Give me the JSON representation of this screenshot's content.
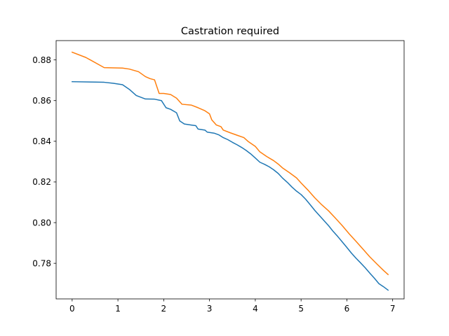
{
  "chart_data": {
    "type": "line",
    "title": "Castration required",
    "xlabel": "",
    "ylabel": "",
    "xlim": [
      -0.35,
      7.25
    ],
    "ylim": [
      0.7625,
      0.8895
    ],
    "xticks": [
      0,
      1,
      2,
      3,
      4,
      5,
      6,
      7
    ],
    "yticks": [
      0.78,
      0.8,
      0.82,
      0.84,
      0.86,
      0.88
    ],
    "ytick_labels": [
      "0.78",
      "0.80",
      "0.82",
      "0.84",
      "0.86",
      "0.88"
    ],
    "grid": false,
    "series": [
      {
        "color": "#1f77b4",
        "points": [
          [
            0,
            0.8693
          ],
          [
            0.5,
            0.8691
          ],
          [
            0.7,
            0.869
          ],
          [
            0.9,
            0.8685
          ],
          [
            1.1,
            0.8678
          ],
          [
            1.25,
            0.8655
          ],
          [
            1.4,
            0.8625
          ],
          [
            1.6,
            0.8608
          ],
          [
            1.8,
            0.8607
          ],
          [
            1.95,
            0.86
          ],
          [
            2.05,
            0.8565
          ],
          [
            2.15,
            0.8557
          ],
          [
            2.28,
            0.854
          ],
          [
            2.35,
            0.85
          ],
          [
            2.45,
            0.8485
          ],
          [
            2.6,
            0.848
          ],
          [
            2.7,
            0.8477
          ],
          [
            2.75,
            0.846
          ],
          [
            2.9,
            0.8455
          ],
          [
            2.95,
            0.8445
          ],
          [
            3.1,
            0.844
          ],
          [
            3.2,
            0.8432
          ],
          [
            3.3,
            0.8418
          ],
          [
            3.4,
            0.8408
          ],
          [
            3.5,
            0.8395
          ],
          [
            3.6,
            0.8383
          ],
          [
            3.7,
            0.837
          ],
          [
            3.8,
            0.8355
          ],
          [
            3.9,
            0.8338
          ],
          [
            4.0,
            0.8318
          ],
          [
            4.1,
            0.8297
          ],
          [
            4.2,
            0.8287
          ],
          [
            4.3,
            0.8275
          ],
          [
            4.4,
            0.826
          ],
          [
            4.5,
            0.8242
          ],
          [
            4.6,
            0.8218
          ],
          [
            4.7,
            0.8198
          ],
          [
            4.8,
            0.8175
          ],
          [
            4.9,
            0.8155
          ],
          [
            5.0,
            0.8138
          ],
          [
            5.1,
            0.8115
          ],
          [
            5.2,
            0.8088
          ],
          [
            5.3,
            0.806
          ],
          [
            5.4,
            0.8035
          ],
          [
            5.5,
            0.801
          ],
          [
            5.6,
            0.7985
          ],
          [
            5.7,
            0.7957
          ],
          [
            5.8,
            0.7932
          ],
          [
            5.9,
            0.7905
          ],
          [
            6.0,
            0.7878
          ],
          [
            6.1,
            0.785
          ],
          [
            6.2,
            0.7825
          ],
          [
            6.3,
            0.7802
          ],
          [
            6.4,
            0.7778
          ],
          [
            6.5,
            0.7752
          ],
          [
            6.6,
            0.7727
          ],
          [
            6.7,
            0.77
          ],
          [
            6.8,
            0.7685
          ],
          [
            6.9,
            0.7668
          ]
        ]
      },
      {
        "color": "#ff7f0e",
        "points": [
          [
            0,
            0.8838
          ],
          [
            0.3,
            0.8812
          ],
          [
            0.7,
            0.8762
          ],
          [
            1.1,
            0.876
          ],
          [
            1.25,
            0.8755
          ],
          [
            1.45,
            0.8742
          ],
          [
            1.6,
            0.8718
          ],
          [
            1.7,
            0.8708
          ],
          [
            1.8,
            0.8702
          ],
          [
            1.9,
            0.8635
          ],
          [
            2.0,
            0.8635
          ],
          [
            2.15,
            0.863
          ],
          [
            2.28,
            0.8612
          ],
          [
            2.4,
            0.8582
          ],
          [
            2.6,
            0.8578
          ],
          [
            2.75,
            0.8565
          ],
          [
            2.9,
            0.855
          ],
          [
            3.0,
            0.8535
          ],
          [
            3.05,
            0.8505
          ],
          [
            3.15,
            0.848
          ],
          [
            3.25,
            0.8472
          ],
          [
            3.3,
            0.8455
          ],
          [
            3.45,
            0.8442
          ],
          [
            3.6,
            0.843
          ],
          [
            3.75,
            0.8418
          ],
          [
            3.85,
            0.8398
          ],
          [
            4.0,
            0.8375
          ],
          [
            4.1,
            0.8348
          ],
          [
            4.25,
            0.8325
          ],
          [
            4.4,
            0.8305
          ],
          [
            4.5,
            0.8288
          ],
          [
            4.6,
            0.8268
          ],
          [
            4.75,
            0.8245
          ],
          [
            4.9,
            0.822
          ],
          [
            5.0,
            0.8195
          ],
          [
            5.15,
            0.816
          ],
          [
            5.3,
            0.8122
          ],
          [
            5.45,
            0.8088
          ],
          [
            5.6,
            0.8058
          ],
          [
            5.75,
            0.8022
          ],
          [
            5.9,
            0.7985
          ],
          [
            6.05,
            0.7945
          ],
          [
            6.2,
            0.7908
          ],
          [
            6.35,
            0.787
          ],
          [
            6.5,
            0.7832
          ],
          [
            6.65,
            0.7798
          ],
          [
            6.8,
            0.7765
          ],
          [
            6.9,
            0.7745
          ]
        ]
      }
    ]
  }
}
